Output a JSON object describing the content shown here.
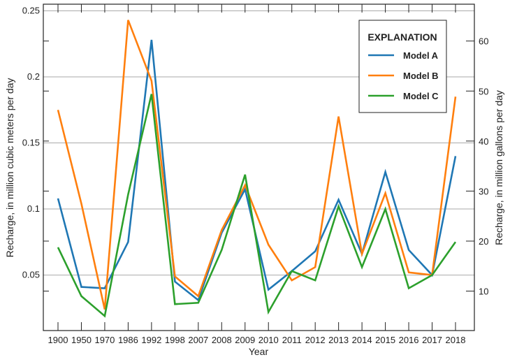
{
  "chart_data": {
    "type": "line",
    "xlabel": "Year",
    "ylabel": "Recharge, in million cubic meters per day",
    "ylabel_right": "Recharge, in million gallons per day",
    "categories": [
      "1900",
      "1950",
      "1970",
      "1986",
      "1992",
      "1998",
      "2007",
      "2008",
      "2009",
      "2010",
      "2011",
      "2012",
      "2013",
      "2014",
      "2015",
      "2016",
      "2017",
      "2018"
    ],
    "ylim": [
      0.008,
      0.255
    ],
    "yticks": [
      "0.05",
      "0.1",
      "0.15",
      "0.2",
      "0.25"
    ],
    "yticks_right": [
      "10",
      "20",
      "30",
      "40",
      "50",
      "60"
    ],
    "grid": true,
    "legend": {
      "title": "EXPLANATION",
      "placement": "top-right"
    },
    "series": [
      {
        "name": "Model A",
        "color": "#1f77b4",
        "values": [
          0.108,
          0.041,
          0.04,
          0.075,
          0.228,
          0.045,
          0.031,
          0.082,
          0.115,
          0.039,
          0.053,
          0.068,
          0.107,
          0.066,
          0.128,
          0.069,
          0.05,
          0.14
        ]
      },
      {
        "name": "Model B",
        "color": "#ff7f0e",
        "values": [
          0.175,
          0.104,
          0.024,
          0.243,
          0.197,
          0.049,
          0.034,
          0.084,
          0.118,
          0.073,
          0.046,
          0.056,
          0.17,
          0.066,
          0.112,
          0.052,
          0.05,
          0.185
        ]
      },
      {
        "name": "Model C",
        "color": "#2ca02c",
        "values": [
          0.071,
          0.034,
          0.019,
          0.111,
          0.187,
          0.028,
          0.029,
          0.069,
          0.126,
          0.022,
          0.053,
          0.046,
          0.102,
          0.056,
          0.1,
          0.04,
          0.05,
          0.075
        ]
      }
    ]
  }
}
